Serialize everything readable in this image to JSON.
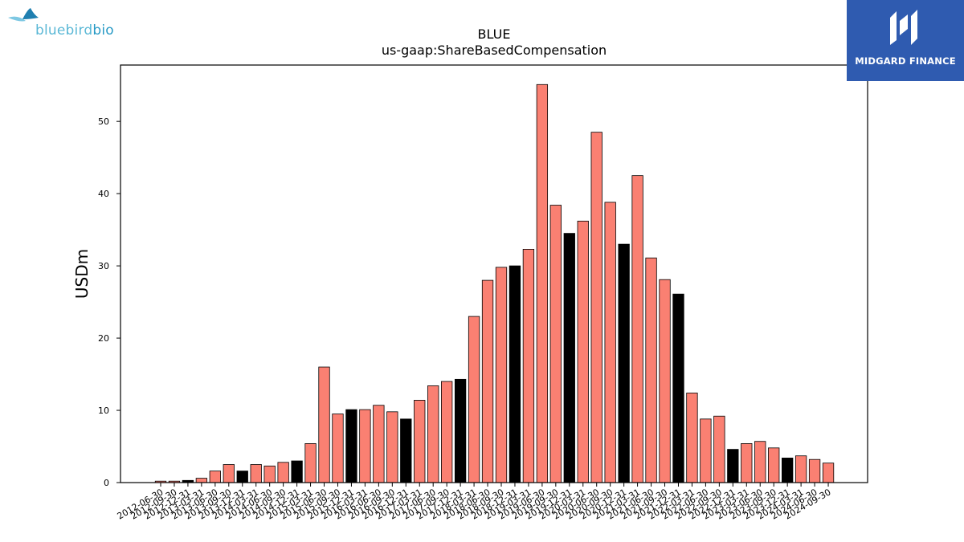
{
  "logos": {
    "left_text_a": "bluebird",
    "left_text_b": "bio",
    "right_text": "MIDGARD FINANCE"
  },
  "colors": {
    "bar_default": "#fa8072",
    "bar_highlight": "#000000",
    "bar_edge": "#000000",
    "logo_right_bg": "#2f5bb0"
  },
  "chart_data": {
    "type": "bar",
    "title": "BLUE",
    "subtitle": "us-gaap:ShareBasedCompensation",
    "xlabel": "",
    "ylabel": "USDm",
    "ylim": [
      0,
      57.8
    ],
    "yticks": [
      0,
      10,
      20,
      30,
      40,
      50
    ],
    "grid": false,
    "categories": [
      "2012-06-30",
      "2012-09-30",
      "2012-12-31",
      "2013-03-31",
      "2013-06-30",
      "2013-09-30",
      "2013-12-31",
      "2014-03-31",
      "2014-06-30",
      "2014-09-30",
      "2014-12-31",
      "2015-03-31",
      "2015-06-30",
      "2015-09-30",
      "2015-12-31",
      "2016-03-31",
      "2016-06-30",
      "2016-09-30",
      "2016-12-31",
      "2017-03-31",
      "2017-06-30",
      "2017-09-30",
      "2017-12-31",
      "2018-03-31",
      "2018-06-30",
      "2018-09-30",
      "2018-12-31",
      "2019-03-31",
      "2019-06-30",
      "2019-09-30",
      "2019-12-31",
      "2020-03-31",
      "2020-06-30",
      "2020-09-30",
      "2020-12-31",
      "2021-03-31",
      "2021-06-30",
      "2021-09-30",
      "2021-12-31",
      "2022-03-31",
      "2022-06-30",
      "2022-09-30",
      "2022-12-31",
      "2023-03-31",
      "2023-06-30",
      "2023-09-30",
      "2023-12-31",
      "2024-03-31",
      "2024-06-30",
      "2024-09-30"
    ],
    "values": [
      0.2,
      0.2,
      0.3,
      0.6,
      1.6,
      2.5,
      1.6,
      2.5,
      2.3,
      2.8,
      3.0,
      5.4,
      16.0,
      9.5,
      10.1,
      10.1,
      10.7,
      9.8,
      8.8,
      11.4,
      13.4,
      14.0,
      14.3,
      23.0,
      28.0,
      29.8,
      30.0,
      32.3,
      55.1,
      38.4,
      34.5,
      36.2,
      48.5,
      38.8,
      33.0,
      42.5,
      31.1,
      28.1,
      26.1,
      12.4,
      8.8,
      9.2,
      4.6,
      5.4,
      5.7,
      4.8,
      3.4,
      3.7,
      3.2,
      2.7
    ],
    "highlight": [
      false,
      false,
      true,
      false,
      false,
      false,
      true,
      false,
      false,
      false,
      true,
      false,
      false,
      false,
      true,
      false,
      false,
      false,
      true,
      false,
      false,
      false,
      true,
      false,
      false,
      false,
      true,
      false,
      false,
      false,
      true,
      false,
      false,
      false,
      true,
      false,
      false,
      false,
      true,
      false,
      false,
      false,
      true,
      false,
      false,
      false,
      true,
      false,
      false,
      false
    ]
  }
}
